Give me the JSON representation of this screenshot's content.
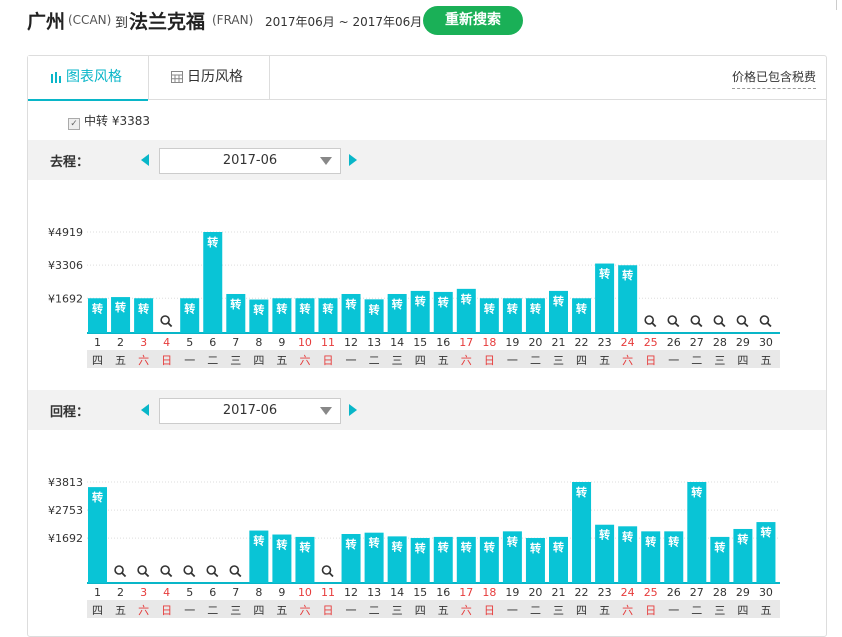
{
  "header": {
    "from_city": "广州",
    "from_code": "(CCAN)",
    "to_word": "到",
    "to_city": "法兰克福",
    "to_code": "(FRAN)",
    "date_range": "2017年06月 ~ 2017年06月",
    "search_button": "重新搜索"
  },
  "tabs": [
    {
      "label": "图表风格",
      "icon": "bar-chart-icon",
      "active": true
    },
    {
      "label": "日历风格",
      "icon": "calendar-icon",
      "active": false
    }
  ],
  "tax_note": "价格已包含税费",
  "filter": {
    "label": "中转 ¥3383",
    "checked": true
  },
  "colors": {
    "accent": "#09b6c8",
    "bar": "#09c4d6",
    "weekend": "#e63b3b",
    "search_btn": "#1ab057"
  },
  "outbound": {
    "label": "去程：",
    "month": "2017-06",
    "chart_data": {
      "type": "bar",
      "categories": [
        "1",
        "2",
        "3",
        "4",
        "5",
        "6",
        "7",
        "8",
        "9",
        "10",
        "11",
        "12",
        "13",
        "14",
        "15",
        "16",
        "17",
        "18",
        "19",
        "20",
        "21",
        "22",
        "23",
        "24",
        "25",
        "26",
        "27",
        "28",
        "29",
        "30"
      ],
      "weekdays": [
        "四",
        "五",
        "六",
        "日",
        "一",
        "二",
        "三",
        "四",
        "五",
        "六",
        "日",
        "一",
        "二",
        "三",
        "四",
        "五",
        "六",
        "日",
        "一",
        "二",
        "三",
        "四",
        "五",
        "六",
        "日",
        "一",
        "二",
        "三",
        "四",
        "五"
      ],
      "weekend_days": [
        3,
        4,
        10,
        11,
        17,
        18,
        24,
        25
      ],
      "values": [
        1692,
        1750,
        1692,
        null,
        1692,
        4919,
        1900,
        1630,
        1692,
        1692,
        1692,
        1900,
        1640,
        1900,
        2050,
        2000,
        2150,
        1692,
        1692,
        1692,
        2050,
        1692,
        3383,
        3300,
        null,
        null,
        null,
        null,
        null,
        null
      ],
      "bar_label": "转",
      "y_ticks": [
        "¥4919",
        "¥3306",
        "¥1692"
      ],
      "ylim": [
        0,
        4919
      ]
    }
  },
  "return": {
    "label": "回程：",
    "month": "2017-06",
    "chart_data": {
      "type": "bar",
      "categories": [
        "1",
        "2",
        "3",
        "4",
        "5",
        "6",
        "7",
        "8",
        "9",
        "10",
        "11",
        "12",
        "13",
        "14",
        "15",
        "16",
        "17",
        "18",
        "19",
        "20",
        "21",
        "22",
        "23",
        "24",
        "25",
        "26",
        "27",
        "28",
        "29",
        "30"
      ],
      "weekdays": [
        "四",
        "五",
        "六",
        "日",
        "一",
        "二",
        "三",
        "四",
        "五",
        "六",
        "日",
        "一",
        "二",
        "三",
        "四",
        "五",
        "六",
        "日",
        "一",
        "二",
        "三",
        "四",
        "五",
        "六",
        "日",
        "一",
        "二",
        "三",
        "四",
        "五"
      ],
      "weekend_days": [
        3,
        4,
        10,
        11,
        17,
        18,
        24,
        25
      ],
      "values": [
        3620,
        null,
        null,
        null,
        null,
        null,
        null,
        1980,
        1830,
        1740,
        null,
        1850,
        1900,
        1760,
        1700,
        1740,
        1740,
        1740,
        1950,
        1700,
        1740,
        3813,
        2200,
        2140,
        1950,
        1950,
        3813,
        1740,
        2040,
        2300
      ],
      "bar_label": "转",
      "y_ticks": [
        "¥3813",
        "¥2753",
        "¥1692"
      ],
      "ylim": [
        0,
        3813
      ]
    }
  }
}
